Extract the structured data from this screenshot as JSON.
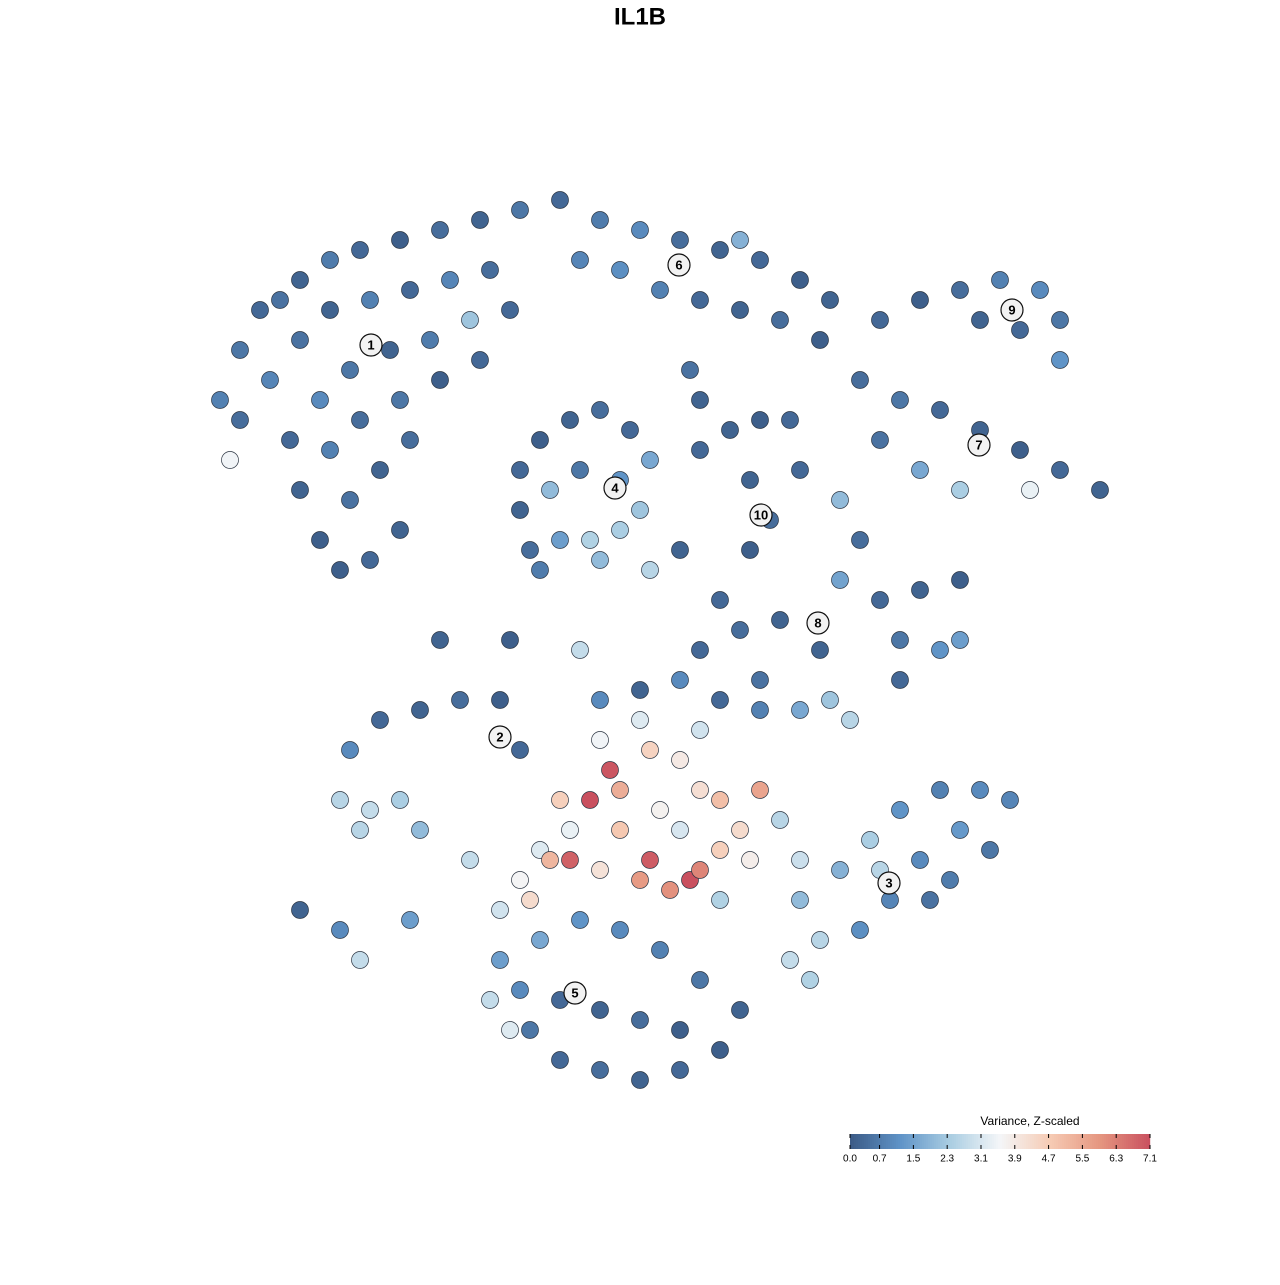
{
  "chart_data": {
    "type": "scatter",
    "title": "IL1B",
    "xlim": [
      0,
      96
    ],
    "ylim": [
      0,
      92
    ],
    "x": [
      4,
      6,
      8,
      10,
      12,
      15,
      18,
      22,
      26,
      30,
      34,
      38,
      6,
      9,
      12,
      15,
      19,
      23,
      27,
      31,
      11,
      14,
      17,
      21,
      25,
      29,
      33,
      12,
      15,
      18,
      22,
      26,
      30,
      14,
      17,
      20,
      23,
      16,
      19,
      22,
      5,
      42,
      46,
      50,
      54,
      58,
      62,
      65,
      40,
      44,
      48,
      52,
      56,
      60,
      64,
      51,
      52,
      56,
      34,
      36,
      39,
      42,
      45,
      47,
      34,
      37,
      40,
      44,
      46,
      35,
      38,
      41,
      44,
      42,
      36,
      52,
      55,
      58,
      61,
      57,
      59,
      57,
      62,
      70,
      74,
      78,
      82,
      86,
      88,
      80,
      84,
      88,
      68,
      72,
      76,
      80,
      84,
      88,
      92,
      70,
      74,
      78,
      85,
      66,
      68,
      66,
      70,
      74,
      78,
      72,
      76,
      78,
      72,
      60,
      56,
      52,
      64,
      58,
      16,
      19,
      22,
      18,
      24,
      20,
      24,
      28,
      32,
      34,
      17,
      12,
      16,
      18,
      23,
      43,
      41,
      44,
      47,
      50,
      52,
      54,
      48,
      44,
      39,
      38,
      36,
      37,
      39,
      42,
      47,
      46,
      49,
      51,
      52,
      54,
      56,
      58,
      57,
      50,
      42,
      46,
      52,
      34,
      35,
      32,
      29,
      60,
      62,
      54,
      42,
      46,
      50,
      54,
      58,
      62,
      65,
      67,
      62,
      66,
      69,
      72,
      76,
      80,
      83,
      78,
      74,
      71,
      68,
      64,
      61,
      63,
      81,
      77,
      75,
      70,
      32,
      36,
      40,
      44,
      48,
      52,
      56,
      54,
      50,
      46,
      42,
      38,
      35,
      34,
      38,
      42,
      46,
      50,
      31,
      33,
      26,
      33,
      40,
      50,
      47,
      54
    ],
    "y": [
      70,
      75,
      79,
      80,
      82,
      84,
      85,
      86,
      87,
      88,
      89,
      90,
      68,
      72,
      76,
      79,
      80,
      81,
      82,
      83,
      66,
      70,
      73,
      75,
      76,
      78,
      79,
      61,
      65,
      68,
      70,
      72,
      74,
      56,
      60,
      63,
      66,
      53,
      54,
      57,
      64,
      88,
      87,
      86,
      85,
      84,
      82,
      80,
      84,
      83,
      81,
      80,
      79,
      78,
      76,
      73,
      70,
      86,
      63,
      66,
      68,
      69,
      67,
      64,
      59,
      61,
      63,
      62,
      59,
      55,
      56,
      56,
      57,
      54,
      53,
      65,
      67,
      68,
      68,
      62,
      58,
      55,
      63,
      78,
      80,
      81,
      82,
      81,
      78,
      78,
      77,
      74,
      72,
      70,
      69,
      67,
      65,
      63,
      61,
      66,
      63,
      61,
      61,
      60,
      56,
      52,
      50,
      51,
      52,
      46,
      45,
      46,
      42,
      48,
      47,
      45,
      45,
      42,
      30,
      29,
      30,
      27,
      27,
      38,
      39,
      40,
      40,
      35,
      35,
      19,
      17,
      14,
      18,
      33,
      30,
      31,
      35,
      34,
      31,
      30,
      29,
      27,
      27,
      30,
      25,
      24,
      24,
      23,
      24,
      22,
      21,
      22,
      23,
      25,
      27,
      31,
      24,
      27,
      36,
      38,
      37,
      22,
      20,
      19,
      24,
      28,
      24,
      20,
      40,
      41,
      42,
      40,
      39,
      39,
      40,
      38,
      20,
      23,
      26,
      29,
      31,
      31,
      30,
      27,
      24,
      20,
      17,
      16,
      14,
      12,
      25,
      22,
      20,
      23,
      14,
      16,
      18,
      17,
      15,
      12,
      9,
      5,
      3,
      2,
      3,
      4,
      7,
      11,
      10,
      9,
      8,
      7,
      10,
      7,
      46,
      46,
      45,
      55,
      53,
      50
    ],
    "values": [
      0.8,
      0.6,
      0.3,
      0.5,
      0.2,
      0.7,
      0.3,
      0.1,
      0.4,
      0.2,
      0.6,
      0.3,
      0.4,
      0.9,
      0.5,
      0.2,
      0.8,
      0.3,
      0.9,
      0.4,
      0.3,
      1.0,
      0.6,
      0.2,
      0.7,
      2.2,
      0.3,
      0.2,
      0.8,
      0.4,
      0.6,
      0.1,
      0.3,
      0.1,
      0.5,
      0.2,
      0.4,
      0.1,
      0.3,
      0.2,
      3.5,
      0.7,
      1.0,
      0.4,
      0.2,
      0.3,
      0.1,
      0.2,
      0.9,
      1.1,
      0.8,
      0.3,
      0.2,
      0.4,
      0.1,
      0.5,
      0.2,
      1.8,
      0.3,
      0.1,
      0.2,
      0.4,
      0.3,
      1.6,
      0.2,
      2.0,
      0.6,
      1.2,
      2.2,
      0.4,
      1.4,
      2.5,
      2.4,
      2.0,
      0.7,
      0.3,
      0.2,
      0.1,
      0.3,
      0.2,
      0.4,
      0.1,
      0.3,
      0.3,
      0.1,
      0.4,
      0.8,
      1.0,
      0.6,
      0.2,
      0.3,
      1.2,
      0.4,
      0.6,
      0.3,
      0.2,
      0.1,
      0.3,
      0.2,
      0.5,
      1.6,
      2.4,
      3.4,
      2.0,
      0.4,
      1.5,
      0.3,
      0.2,
      0.1,
      0.6,
      1.2,
      1.4,
      0.3,
      0.2,
      0.4,
      0.3,
      0.2,
      0.5,
      2.6,
      2.8,
      2.4,
      2.6,
      2.0,
      0.3,
      0.2,
      0.4,
      0.1,
      0.3,
      1.0,
      0.2,
      1.0,
      2.8,
      1.4,
      7.0,
      7.1,
      5.4,
      4.5,
      3.9,
      4.2,
      5.0,
      3.7,
      4.8,
      3.4,
      4.6,
      3.2,
      5.2,
      6.8,
      4.1,
      6.9,
      5.8,
      6.0,
      7.1,
      6.2,
      4.6,
      4.3,
      5.6,
      3.8,
      3.1,
      3.5,
      3.2,
      3.0,
      3.6,
      4.3,
      3.0,
      2.8,
      2.6,
      2.9,
      2.5,
      1.0,
      0.2,
      1.0,
      0.3,
      0.8,
      1.6,
      2.2,
      2.6,
      2.0,
      1.8,
      2.4,
      1.2,
      0.8,
      1.0,
      0.9,
      1.3,
      1.0,
      0.9,
      1.1,
      2.6,
      2.8,
      2.5,
      0.6,
      0.7,
      0.5,
      2.6,
      1.4,
      1.6,
      1.2,
      1.0,
      0.8,
      0.6,
      0.2,
      0.1,
      0.3,
      0.2,
      0.4,
      0.3,
      0.6,
      1.0,
      0.3,
      0.2,
      0.4,
      0.1,
      2.8,
      3.2,
      0.2,
      0.1,
      2.8,
      0.2,
      2.6,
      0.3
    ],
    "cluster_labels": {
      "labels": [
        "1",
        "2",
        "3",
        "4",
        "5",
        "6",
        "7",
        "8",
        "9",
        "10"
      ],
      "x": [
        19.1,
        32,
        70.9,
        43.5,
        39.5,
        49.9,
        79.9,
        63.8,
        83.2,
        58.1
      ],
      "y": [
        75.5,
        36.3,
        21.7,
        61.2,
        10.7,
        83.5,
        65.5,
        47.7,
        79,
        58.5
      ]
    },
    "colorbar": {
      "title": "Variance, Z-scaled",
      "lim": [
        0,
        7.1
      ],
      "colors": [
        "#3b5a85",
        "#5f93c7",
        "#a9cde2",
        "#f4f6f8",
        "#f6cbb4",
        "#e59680",
        "#c9505f"
      ],
      "ticks": [
        {
          "value": 0,
          "label": "0.0"
        },
        0.7,
        1.5,
        2.3,
        3.1,
        3.9,
        4.7,
        5.5,
        6.3,
        7.1
      ]
    }
  }
}
